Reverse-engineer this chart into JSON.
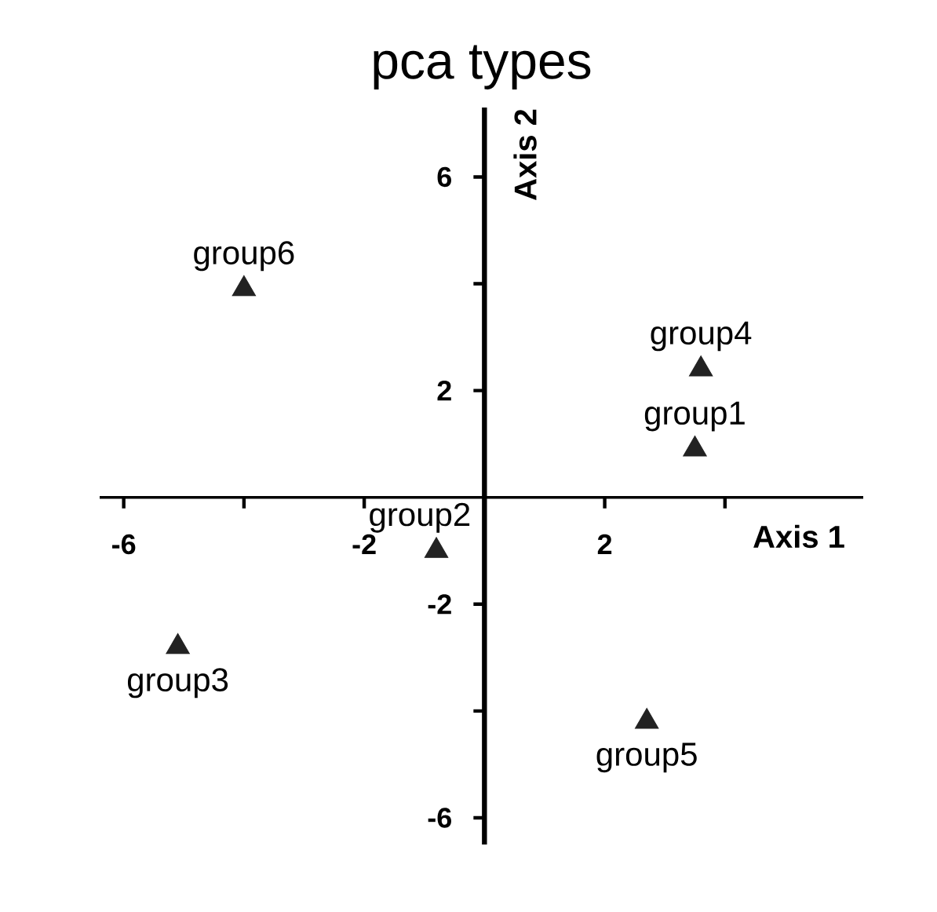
{
  "chart_data": {
    "type": "scatter",
    "title": "pca types",
    "xlabel": "Axis 1",
    "ylabel": "Axis 2",
    "xlim": [
      -6.4,
      6.3
    ],
    "ylim": [
      -6.5,
      7.3
    ],
    "xticks": [
      -6,
      {
        "value": -4,
        "label": null
      },
      -2,
      2,
      {
        "value": 4,
        "label": null
      }
    ],
    "yticks": [
      -6,
      {
        "value": -4,
        "label": null
      },
      -2,
      2,
      {
        "value": 4,
        "label": null
      },
      6
    ],
    "marker": "triangle",
    "series": [
      {
        "name": "group1",
        "color": "#222222",
        "x": [
          3.5
        ],
        "values": [
          0.9
        ]
      },
      {
        "name": "group2",
        "color": "#222222",
        "x": [
          -0.8
        ],
        "values": [
          -1.0
        ]
      },
      {
        "name": "group3",
        "color": "#222222",
        "x": [
          -5.1
        ],
        "values": [
          -2.8
        ]
      },
      {
        "name": "group4",
        "color": "#222222",
        "x": [
          3.6
        ],
        "values": [
          2.4
        ]
      },
      {
        "name": "group5",
        "color": "#222222",
        "x": [
          2.7
        ],
        "values": [
          -4.2
        ]
      },
      {
        "name": "group6",
        "color": "#222222",
        "x": [
          -4.0
        ],
        "values": [
          3.9
        ]
      }
    ]
  }
}
